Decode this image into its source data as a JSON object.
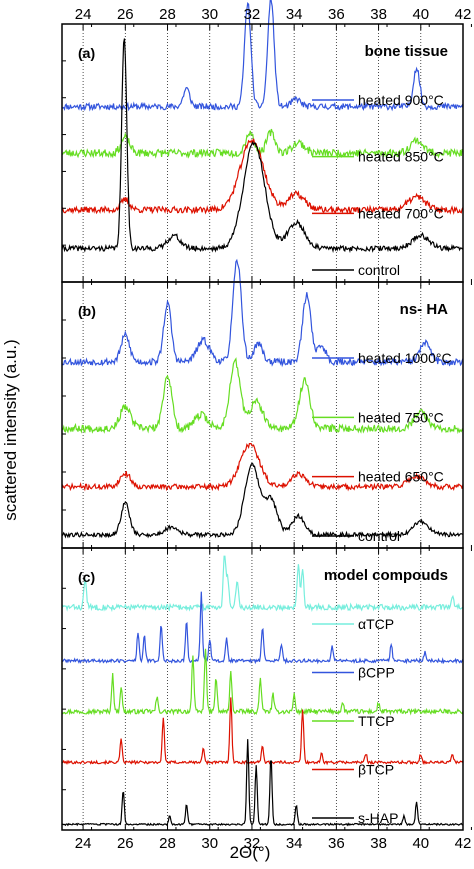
{
  "chart_data": {
    "type": "line",
    "xlabel": "2Θ(°)",
    "ylabel": "scattered intensity (a.u.)",
    "xlim": [
      23,
      42
    ],
    "xticks": [
      24,
      26,
      28,
      30,
      32,
      34,
      36,
      38,
      40,
      42
    ],
    "grid": "dotted vertical lines at x = 24, 26, ..., 42",
    "panels": [
      {
        "label": "(a)",
        "title": "bone tissue",
        "series": [
          {
            "name": "heated 900°C",
            "color": "#3355dd",
            "baseline": 0.68,
            "noise": 0.012,
            "seed": 11,
            "peaks": [
              [
                28.9,
                0.07,
                0.15
              ],
              [
                31.8,
                0.4,
                0.15
              ],
              [
                32.9,
                0.42,
                0.15
              ],
              [
                34.1,
                0.03,
                0.2
              ],
              [
                39.8,
                0.15,
                0.15
              ]
            ]
          },
          {
            "name": "heated 850°C",
            "color": "#66dd22",
            "baseline": 0.5,
            "noise": 0.015,
            "seed": 23,
            "peaks": [
              [
                26.0,
                0.06,
                0.2
              ],
              [
                31.9,
                0.08,
                0.2
              ],
              [
                32.9,
                0.08,
                0.2
              ],
              [
                34.2,
                0.04,
                0.3
              ],
              [
                39.8,
                0.05,
                0.3
              ]
            ]
          },
          {
            "name": "heated 700°C",
            "color": "#dd1100",
            "baseline": 0.28,
            "noise": 0.012,
            "seed": 37,
            "peaks": [
              [
                26.0,
                0.04,
                0.2
              ],
              [
                32.0,
                0.27,
                0.55
              ],
              [
                34.1,
                0.06,
                0.4
              ],
              [
                39.8,
                0.05,
                0.4
              ]
            ]
          },
          {
            "name": "control",
            "color": "#000000",
            "baseline": 0.13,
            "noise": 0.01,
            "seed": 41,
            "peaks": [
              [
                25.95,
                0.82,
                0.12
              ],
              [
                28.3,
                0.05,
                0.3
              ],
              [
                32.1,
                0.41,
                0.5
              ],
              [
                34.1,
                0.1,
                0.4
              ],
              [
                40.0,
                0.05,
                0.4
              ]
            ]
          }
        ]
      },
      {
        "label": "(b)",
        "title": "ns- HA",
        "series": [
          {
            "name": "heated 1000°C",
            "color": "#3355dd",
            "baseline": 0.7,
            "noise": 0.013,
            "seed": 53,
            "peaks": [
              [
                26.0,
                0.1,
                0.2
              ],
              [
                28.0,
                0.22,
                0.18
              ],
              [
                29.7,
                0.08,
                0.3
              ],
              [
                31.3,
                0.38,
                0.2
              ],
              [
                32.3,
                0.07,
                0.2
              ],
              [
                34.6,
                0.25,
                0.2
              ],
              [
                35.3,
                0.06,
                0.2
              ],
              [
                40.2,
                0.07,
                0.25
              ]
            ]
          },
          {
            "name": "heated 750°C",
            "color": "#66dd22",
            "baseline": 0.45,
            "noise": 0.014,
            "seed": 67,
            "peaks": [
              [
                26.0,
                0.08,
                0.25
              ],
              [
                28.0,
                0.2,
                0.2
              ],
              [
                29.6,
                0.05,
                0.3
              ],
              [
                31.2,
                0.25,
                0.25
              ],
              [
                32.2,
                0.1,
                0.3
              ],
              [
                34.5,
                0.18,
                0.25
              ],
              [
                40.0,
                0.06,
                0.3
              ]
            ]
          },
          {
            "name": "heated 650°C",
            "color": "#dd1100",
            "baseline": 0.23,
            "noise": 0.01,
            "seed": 71,
            "peaks": [
              [
                26.0,
                0.05,
                0.25
              ],
              [
                31.9,
                0.16,
                0.45
              ],
              [
                34.2,
                0.05,
                0.35
              ],
              [
                39.8,
                0.04,
                0.4
              ]
            ]
          },
          {
            "name": "control",
            "color": "#000000",
            "baseline": 0.05,
            "noise": 0.008,
            "seed": 79,
            "peaks": [
              [
                26.0,
                0.12,
                0.2
              ],
              [
                28.2,
                0.03,
                0.3
              ],
              [
                32.0,
                0.26,
                0.35
              ],
              [
                32.9,
                0.13,
                0.3
              ],
              [
                34.2,
                0.07,
                0.3
              ],
              [
                40.0,
                0.05,
                0.35
              ]
            ]
          }
        ]
      },
      {
        "label": "(c)",
        "title": "model compouds",
        "series": [
          {
            "name": "αTCP",
            "color": "#77eedd",
            "baseline": 0.79,
            "noise": 0.01,
            "seed": 83,
            "peaks": [
              [
                24.1,
                0.1,
                0.06
              ],
              [
                30.7,
                0.19,
                0.06
              ],
              [
                30.85,
                0.1,
                0.06
              ],
              [
                31.3,
                0.1,
                0.06
              ],
              [
                34.2,
                0.15,
                0.06
              ],
              [
                34.4,
                0.13,
                0.06
              ],
              [
                41.5,
                0.04,
                0.06
              ]
            ]
          },
          {
            "name": "βCPP",
            "color": "#3355dd",
            "baseline": 0.6,
            "noise": 0.006,
            "seed": 89,
            "peaks": [
              [
                26.6,
                0.1,
                0.05
              ],
              [
                26.9,
                0.09,
                0.05
              ],
              [
                27.7,
                0.13,
                0.05
              ],
              [
                28.9,
                0.14,
                0.05
              ],
              [
                29.6,
                0.24,
                0.05
              ],
              [
                30.0,
                0.08,
                0.05
              ],
              [
                30.8,
                0.08,
                0.05
              ],
              [
                32.5,
                0.12,
                0.05
              ],
              [
                33.4,
                0.06,
                0.05
              ],
              [
                35.8,
                0.05,
                0.05
              ],
              [
                38.6,
                0.06,
                0.05
              ],
              [
                40.2,
                0.03,
                0.05
              ]
            ]
          },
          {
            "name": "TTCP",
            "color": "#66dd22",
            "baseline": 0.42,
            "noise": 0.008,
            "seed": 97,
            "peaks": [
              [
                25.4,
                0.13,
                0.05
              ],
              [
                25.8,
                0.09,
                0.05
              ],
              [
                27.5,
                0.05,
                0.05
              ],
              [
                29.2,
                0.2,
                0.05
              ],
              [
                29.8,
                0.23,
                0.05
              ],
              [
                30.3,
                0.12,
                0.05
              ],
              [
                31.0,
                0.14,
                0.05
              ],
              [
                32.4,
                0.12,
                0.05
              ],
              [
                33.0,
                0.06,
                0.05
              ],
              [
                34.0,
                0.06,
                0.05
              ],
              [
                36.3,
                0.03,
                0.05
              ],
              [
                38.0,
                0.03,
                0.05
              ]
            ]
          },
          {
            "name": "βTCP",
            "color": "#dd1100",
            "baseline": 0.24,
            "noise": 0.005,
            "seed": 101,
            "peaks": [
              [
                25.8,
                0.08,
                0.05
              ],
              [
                27.8,
                0.16,
                0.05
              ],
              [
                29.7,
                0.05,
                0.05
              ],
              [
                31.0,
                0.23,
                0.05
              ],
              [
                32.5,
                0.06,
                0.05
              ],
              [
                34.4,
                0.19,
                0.05
              ],
              [
                35.3,
                0.03,
                0.05
              ],
              [
                37.4,
                0.03,
                0.05
              ],
              [
                40.0,
                0.03,
                0.05
              ],
              [
                41.5,
                0.03,
                0.05
              ]
            ]
          },
          {
            "name": "s-HAP",
            "color": "#000000",
            "baseline": 0.02,
            "noise": 0.003,
            "seed": 103,
            "peaks": [
              [
                25.9,
                0.12,
                0.05
              ],
              [
                28.1,
                0.03,
                0.05
              ],
              [
                28.9,
                0.07,
                0.05
              ],
              [
                31.8,
                0.3,
                0.05
              ],
              [
                32.2,
                0.21,
                0.05
              ],
              [
                32.9,
                0.24,
                0.05
              ],
              [
                34.1,
                0.07,
                0.05
              ],
              [
                39.2,
                0.03,
                0.05
              ],
              [
                39.8,
                0.08,
                0.05
              ]
            ]
          }
        ]
      }
    ]
  }
}
